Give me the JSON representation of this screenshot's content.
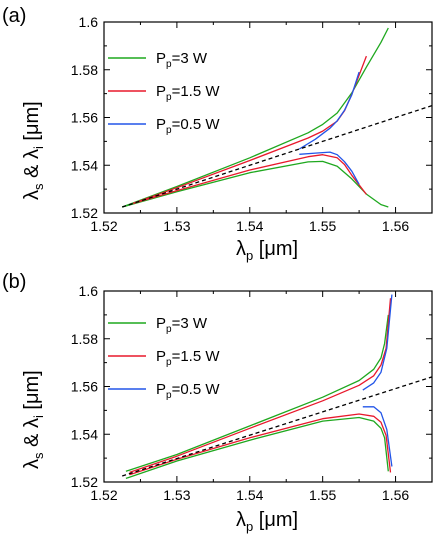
{
  "colors": {
    "green": "#1fa81f",
    "red": "#e8192c",
    "blue": "#2255e8",
    "dashed": "#000000"
  },
  "chart_data": [
    {
      "type": "line",
      "panel_label": "(a)",
      "xlabel_main": "λ",
      "xlabel_sub": "p",
      "xlabel_tail": " [μm]",
      "ylabel_a": "λ",
      "ylabel_a_sub": "s",
      "ylabel_mid": " & λ",
      "ylabel_b_sub": "i",
      "ylabel_tail": " [μm]",
      "xlim": [
        1.52,
        1.565
      ],
      "ylim": [
        1.52,
        1.6
      ],
      "xticks": [
        "1.52",
        "1.53",
        "1.54",
        "1.55",
        "1.56"
      ],
      "yticks": [
        "1.52",
        "1.54",
        "1.56",
        "1.58",
        "1.6"
      ],
      "legend": [
        {
          "pre": "P",
          "sub": "p",
          "post": "=3 W",
          "color": "green"
        },
        {
          "pre": "P",
          "sub": "p",
          "post": "=1.5 W",
          "color": "red"
        },
        {
          "pre": "P",
          "sub": "p",
          "post": "=0.5 W",
          "color": "blue"
        }
      ],
      "series": [
        {
          "color": "green",
          "x": [
            1.5225,
            1.53,
            1.54,
            1.548,
            1.55,
            1.552,
            1.554,
            1.556,
            1.558,
            1.559
          ],
          "y": [
            1.5225,
            1.5311,
            1.5431,
            1.5536,
            1.5571,
            1.5619,
            1.5703,
            1.5811,
            1.5915,
            1.5975
          ]
        },
        {
          "color": "green",
          "x": [
            1.5225,
            1.53,
            1.54,
            1.548,
            1.55,
            1.552,
            1.554,
            1.556,
            1.558,
            1.559
          ],
          "y": [
            1.5225,
            1.5289,
            1.5369,
            1.5414,
            1.5416,
            1.5396,
            1.5343,
            1.5279,
            1.5235,
            1.5225
          ]
        },
        {
          "color": "red",
          "x": [
            1.524,
            1.53,
            1.54,
            1.548,
            1.55,
            1.552,
            1.553,
            1.554,
            1.556
          ],
          "y": [
            1.524,
            1.5306,
            1.542,
            1.5514,
            1.5543,
            1.5585,
            1.5628,
            1.5697,
            1.5857
          ]
        },
        {
          "color": "red",
          "x": [
            1.524,
            1.53,
            1.54,
            1.548,
            1.55,
            1.552,
            1.553,
            1.554,
            1.556
          ],
          "y": [
            1.524,
            1.5294,
            1.538,
            1.5436,
            1.5444,
            1.5431,
            1.5403,
            1.5358,
            1.5278
          ]
        },
        {
          "color": "blue",
          "x": [
            1.5468,
            1.549,
            1.551,
            1.552,
            1.553,
            1.554,
            1.555
          ],
          "y": [
            1.5468,
            1.5509,
            1.5555,
            1.5586,
            1.563,
            1.5695,
            1.579
          ]
        },
        {
          "color": "blue",
          "x": [
            1.5468,
            1.549,
            1.551,
            1.552,
            1.553,
            1.554,
            1.555
          ],
          "y": [
            1.5446,
            1.5451,
            1.5455,
            1.5444,
            1.5415,
            1.5375,
            1.532
          ]
        },
        {
          "color": "dashed",
          "x": [
            1.5225,
            1.565
          ],
          "y": [
            1.5225,
            1.565
          ]
        }
      ]
    },
    {
      "type": "line",
      "panel_label": "(b)",
      "xlabel_main": "λ",
      "xlabel_sub": "p",
      "xlabel_tail": " [μm]",
      "ylabel_a": "λ",
      "ylabel_a_sub": "s",
      "ylabel_mid": " & λ",
      "ylabel_b_sub": "i",
      "ylabel_tail": " [μm]",
      "xlim": [
        1.52,
        1.565
      ],
      "ylim": [
        1.52,
        1.6
      ],
      "xticks": [
        "1.52",
        "1.53",
        "1.54",
        "1.55",
        "1.56"
      ],
      "yticks": [
        "1.52",
        "1.54",
        "1.56",
        "1.58",
        "1.6"
      ],
      "legend": [
        {
          "pre": "P",
          "sub": "p",
          "post": "=3 W",
          "color": "green"
        },
        {
          "pre": "P",
          "sub": "p",
          "post": "=1.5 W",
          "color": "red"
        },
        {
          "pre": "P",
          "sub": "p",
          "post": "=0.5 W",
          "color": "blue"
        }
      ],
      "series": [
        {
          "color": "green",
          "x": [
            1.523,
            1.53,
            1.54,
            1.55,
            1.555,
            1.557,
            1.558,
            1.5585,
            1.559
          ],
          "y": [
            1.5245,
            1.5315,
            1.5435,
            1.5555,
            1.5625,
            1.5672,
            1.572,
            1.578,
            1.59
          ]
        },
        {
          "color": "green",
          "x": [
            1.523,
            1.53,
            1.54,
            1.55,
            1.555,
            1.557,
            1.558,
            1.5585,
            1.559
          ],
          "y": [
            1.5215,
            1.5288,
            1.5375,
            1.5455,
            1.547,
            1.5455,
            1.5425,
            1.5385,
            1.5245
          ]
        },
        {
          "color": "red",
          "x": [
            1.5235,
            1.53,
            1.54,
            1.55,
            1.555,
            1.557,
            1.558,
            1.5587,
            1.5593
          ],
          "y": [
            1.524,
            1.5308,
            1.5425,
            1.554,
            1.5605,
            1.5645,
            1.569,
            1.576,
            1.597
          ]
        },
        {
          "color": "red",
          "x": [
            1.5235,
            1.53,
            1.54,
            1.55,
            1.555,
            1.557,
            1.558,
            1.5587,
            1.5593
          ],
          "y": [
            1.523,
            1.5295,
            1.5385,
            1.5465,
            1.5485,
            1.5475,
            1.545,
            1.5395,
            1.524
          ]
        },
        {
          "color": "blue",
          "x": [
            1.5555,
            1.557,
            1.558,
            1.5588,
            1.5595
          ],
          "y": [
            1.5585,
            1.5615,
            1.566,
            1.576,
            1.5985
          ]
        },
        {
          "color": "blue",
          "x": [
            1.5555,
            1.557,
            1.558,
            1.5588,
            1.5595
          ],
          "y": [
            1.5515,
            1.5515,
            1.549,
            1.542,
            1.5265
          ]
        },
        {
          "color": "dashed",
          "x": [
            1.5225,
            1.565
          ],
          "y": [
            1.5225,
            1.564
          ]
        }
      ]
    }
  ]
}
